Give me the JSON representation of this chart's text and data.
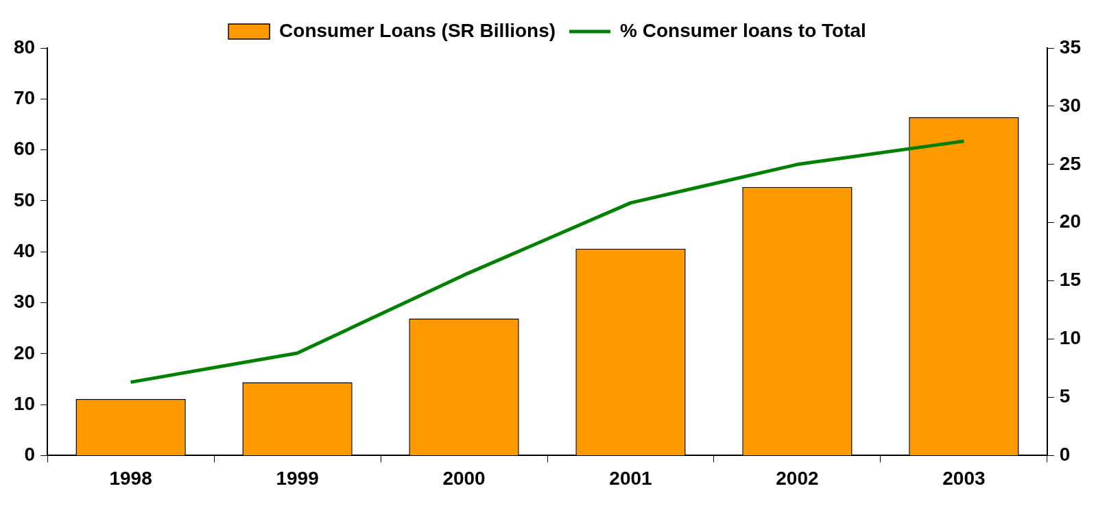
{
  "chart_data": {
    "type": "bar",
    "categories": [
      "1998",
      "1999",
      "2000",
      "2001",
      "2002",
      "2003"
    ],
    "series": [
      {
        "name": "Consumer Loans (SR Billions)",
        "color": "#ff9900",
        "values": [
          11.1,
          14.4,
          26.9,
          40.6,
          52.7,
          66.4
        ]
      },
      {
        "name": "% Consumer loans to Total",
        "type": "line",
        "axis": "y2",
        "color": "#008000",
        "values": [
          6.3,
          8.8,
          15.5,
          21.7,
          25.0,
          27.0
        ]
      }
    ],
    "ylim": [
      0,
      80
    ],
    "yticks": [
      0,
      10,
      20,
      30,
      40,
      50,
      60,
      70,
      80
    ],
    "y2lim": [
      0,
      35
    ],
    "y2ticks": [
      0,
      5,
      10,
      15,
      20,
      25,
      30,
      35
    ],
    "grid": false,
    "legend": "top",
    "marker": "none"
  }
}
